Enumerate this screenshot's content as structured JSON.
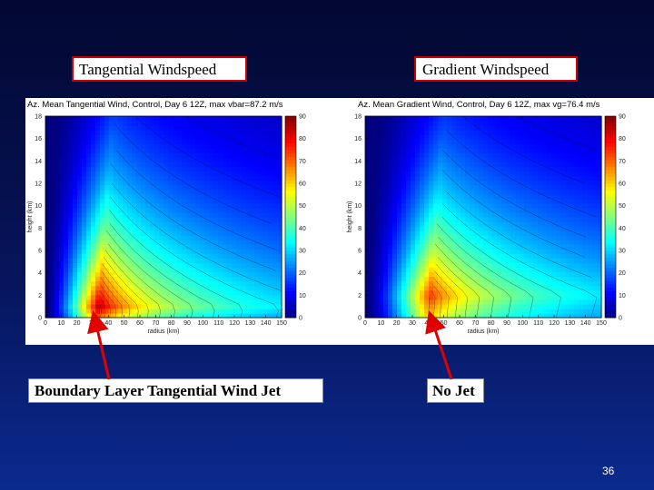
{
  "slide": {
    "label_left": "Tangential Windspeed",
    "label_right": "Gradient Windspeed",
    "annotation_left": "Boundary Layer Tangential Wind Jet",
    "annotation_right": "No Jet",
    "slide_number": "36",
    "arrow_color": "#e00000"
  },
  "chart_data": [
    {
      "type": "heatmap",
      "title": "Az. Mean Tangential Wind, Control, Day 6 12Z, max vbar=87.2 m/s",
      "xlabel": "radius (km)",
      "ylabel": "height (km)",
      "x_ticks": [
        "0",
        "10",
        "20",
        "30",
        "40",
        "50",
        "60",
        "70",
        "80",
        "90",
        "100",
        "110",
        "120",
        "130",
        "140",
        "150"
      ],
      "y_ticks": [
        "0",
        "2",
        "4",
        "6",
        "8",
        "10",
        "12",
        "14",
        "16",
        "18"
      ],
      "xlim": [
        0,
        150
      ],
      "ylim": [
        0,
        18
      ],
      "colorbar_ticks": [
        "0",
        "10",
        "20",
        "30",
        "40",
        "50",
        "60",
        "70",
        "80",
        "90"
      ],
      "colorbar_range": [
        0,
        90
      ],
      "max_value": 87.2,
      "max_location": {
        "radius_km": 33,
        "height_km": 1
      },
      "annotation_points_to": {
        "radius_km": 33,
        "height_km": 0.5
      }
    },
    {
      "type": "heatmap",
      "title": "Az. Mean Gradient Wind, Control, Day 6 12Z, max vg=76.4 m/s",
      "xlabel": "radius (km)",
      "ylabel": "height (km)",
      "x_ticks": [
        "0",
        "10",
        "20",
        "30",
        "40",
        "50",
        "60",
        "70",
        "80",
        "90",
        "100",
        "110",
        "120",
        "130",
        "140",
        "150"
      ],
      "y_ticks": [
        "0",
        "2",
        "4",
        "6",
        "8",
        "10",
        "12",
        "14",
        "16",
        "18"
      ],
      "xlim": [
        0,
        150
      ],
      "ylim": [
        0,
        18
      ],
      "colorbar_ticks": [
        "0",
        "10",
        "20",
        "30",
        "40",
        "50",
        "60",
        "70",
        "80",
        "90"
      ],
      "colorbar_range": [
        0,
        90
      ],
      "max_value": 76.4,
      "max_location": {
        "radius_km": 40,
        "height_km": 2
      },
      "annotation_points_to": {
        "radius_km": 40,
        "height_km": 0.5
      }
    }
  ]
}
